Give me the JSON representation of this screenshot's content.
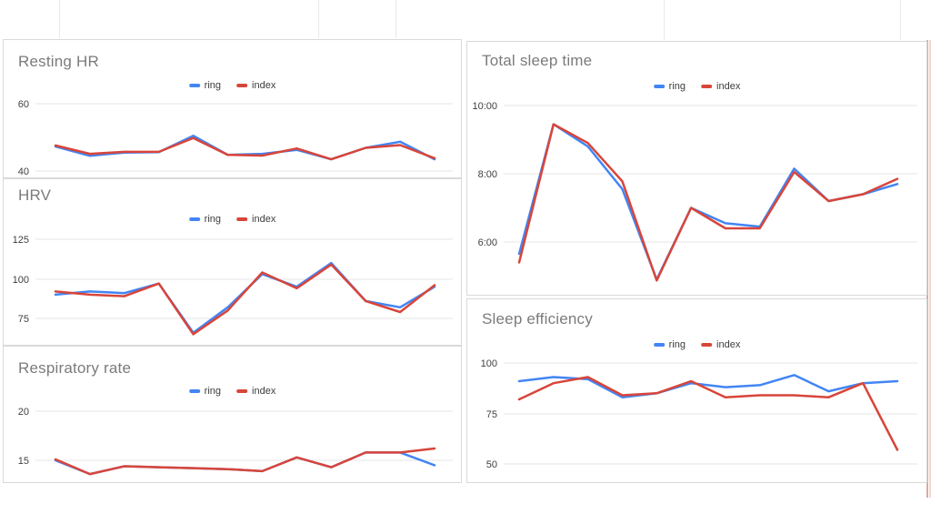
{
  "app_context": "spreadsheet-chart-grid",
  "colors": {
    "ring_series": "#4285f4",
    "index_series": "#d8453a",
    "gridline": "#e6e6e6",
    "tick_label": "#3f3f3f",
    "chart_title": "#7b7b7b",
    "card_border": "#d9d9d9"
  },
  "legend": {
    "position": "top",
    "items": [
      "ring",
      "index"
    ]
  },
  "chart_data": [
    {
      "type": "line",
      "title": "Resting HR",
      "xlabel": "",
      "ylabel": "",
      "grid": true,
      "legend_position": "top",
      "y_ticks": [
        {
          "label": "60",
          "value": 60
        },
        {
          "label": "40",
          "value": 40
        }
      ],
      "ylim": [
        38,
        63
      ],
      "series": [
        {
          "name": "ring",
          "values": [
            47.3,
            44.5,
            45.5,
            45.6,
            50.5,
            44.8,
            45.1,
            46.3,
            43.5,
            46.9,
            48.7,
            43.5
          ]
        },
        {
          "name": "index",
          "values": [
            47.6,
            45.1,
            45.7,
            45.7,
            49.8,
            44.8,
            44.6,
            46.7,
            43.5,
            46.9,
            47.7,
            43.8
          ]
        }
      ]
    },
    {
      "type": "line",
      "title": "HRV",
      "xlabel": "",
      "ylabel": "",
      "grid": true,
      "legend_position": "top",
      "y_ticks": [
        {
          "label": "125",
          "value": 125
        },
        {
          "label": "100",
          "value": 100
        },
        {
          "label": "75",
          "value": 75
        }
      ],
      "ylim": [
        60,
        128
      ],
      "series": [
        {
          "name": "ring",
          "values": [
            90,
            92,
            91,
            97,
            66,
            82,
            103,
            95,
            110,
            86,
            82,
            95
          ]
        },
        {
          "name": "index",
          "values": [
            92,
            90,
            89,
            97,
            65,
            80,
            104,
            94,
            109,
            86,
            79,
            96
          ]
        }
      ]
    },
    {
      "type": "line",
      "title": "Respiratory rate",
      "xlabel": "",
      "ylabel": "",
      "grid": true,
      "legend_position": "top",
      "y_ticks": [
        {
          "label": "20",
          "value": 20
        },
        {
          "label": "15",
          "value": 15
        }
      ],
      "ylim": [
        12.5,
        21.5
      ],
      "series": [
        {
          "name": "ring",
          "values": [
            15.0,
            13.6,
            14.4,
            14.3,
            14.2,
            14.1,
            13.9,
            15.3,
            14.3,
            15.8,
            15.8,
            14.5
          ]
        },
        {
          "name": "index",
          "values": [
            15.1,
            13.6,
            14.4,
            14.3,
            14.2,
            14.1,
            13.9,
            15.3,
            14.3,
            15.8,
            15.8,
            16.2
          ]
        }
      ]
    },
    {
      "type": "line",
      "title": "Total sleep time",
      "xlabel": "",
      "ylabel": "",
      "y_unit": "hours",
      "grid": true,
      "legend_position": "top",
      "y_ticks": [
        {
          "label": "10:00",
          "value": 10
        },
        {
          "label": "8:00",
          "value": 8
        },
        {
          "label": "6:00",
          "value": 6
        }
      ],
      "ylim": [
        4.5,
        10.7
      ],
      "series": [
        {
          "name": "ring",
          "values": [
            5.65,
            9.45,
            8.8,
            7.55,
            4.9,
            7.0,
            6.55,
            6.45,
            8.15,
            7.2,
            7.4,
            7.7
          ]
        },
        {
          "name": "index",
          "values": [
            5.4,
            9.45,
            8.9,
            7.78,
            4.87,
            7.0,
            6.4,
            6.4,
            8.05,
            7.2,
            7.4,
            7.85
          ]
        }
      ]
    },
    {
      "type": "line",
      "title": "Sleep efficiency",
      "xlabel": "",
      "ylabel": "",
      "grid": true,
      "legend_position": "top",
      "y_ticks": [
        {
          "label": "100",
          "value": 100
        },
        {
          "label": "75",
          "value": 75
        },
        {
          "label": "50",
          "value": 50
        }
      ],
      "ylim": [
        45,
        105
      ],
      "series": [
        {
          "name": "ring",
          "values": [
            91,
            93,
            92,
            83,
            85,
            90,
            88,
            89,
            94,
            86,
            90,
            91
          ]
        },
        {
          "name": "index",
          "values": [
            82,
            90,
            93,
            84,
            85,
            91,
            83,
            84,
            84,
            83,
            90,
            57
          ]
        }
      ]
    }
  ]
}
